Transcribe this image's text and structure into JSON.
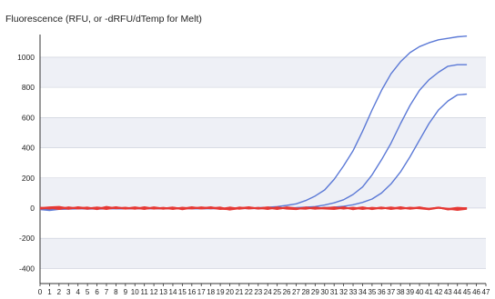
{
  "chart_data": {
    "type": "line",
    "title": "Fluorescence (RFU, or -dRFU/dTemp for Melt)",
    "xlabel": "",
    "ylabel": "",
    "xlim": [
      0,
      47
    ],
    "ylim": [
      -500,
      1150
    ],
    "y_ticks": [
      -400,
      -200,
      0,
      200,
      400,
      600,
      800,
      1000
    ],
    "x_ticks": [
      0,
      1,
      2,
      3,
      4,
      5,
      6,
      7,
      8,
      9,
      10,
      11,
      12,
      13,
      14,
      15,
      16,
      17,
      18,
      19,
      20,
      21,
      22,
      23,
      24,
      25,
      26,
      27,
      28,
      29,
      30,
      31,
      32,
      33,
      34,
      35,
      36,
      37,
      38,
      39,
      40,
      41,
      42,
      43,
      44,
      45,
      46,
      47
    ],
    "grid": "horizontal banded",
    "legend": "none",
    "colors": {
      "amplification": "#5b79d6",
      "baseline": "#e53935",
      "band": "#eef0f6",
      "grid": "#c8ccd8"
    },
    "series": [
      {
        "color": "#5b79d6",
        "x": [
          0,
          1,
          2,
          3,
          4,
          5,
          6,
          7,
          8,
          9,
          10,
          11,
          12,
          13,
          14,
          15,
          16,
          17,
          18,
          19,
          20,
          21,
          22,
          23,
          24,
          25,
          26,
          27,
          28,
          29,
          30,
          31,
          32,
          33,
          34,
          35,
          36,
          37,
          38,
          39,
          40,
          41,
          42,
          43,
          44,
          45
        ],
        "y": [
          -5,
          -8,
          -6,
          -4,
          -5,
          -4,
          -5,
          -3,
          -4,
          -5,
          -3,
          -3,
          -2,
          -4,
          -3,
          -2,
          -4,
          -3,
          -2,
          -3,
          -2,
          -1,
          0,
          2,
          5,
          10,
          18,
          28,
          50,
          80,
          120,
          190,
          280,
          380,
          510,
          650,
          780,
          890,
          970,
          1030,
          1070,
          1095,
          1115,
          1125,
          1135,
          1140
        ]
      },
      {
        "color": "#5b79d6",
        "x": [
          0,
          1,
          2,
          3,
          4,
          5,
          6,
          7,
          8,
          9,
          10,
          11,
          12,
          13,
          14,
          15,
          16,
          17,
          18,
          19,
          20,
          21,
          22,
          23,
          24,
          25,
          26,
          27,
          28,
          29,
          30,
          31,
          32,
          33,
          34,
          35,
          36,
          37,
          38,
          39,
          40,
          41,
          42,
          43,
          44,
          45
        ],
        "y": [
          -8,
          -10,
          -6,
          -5,
          -4,
          -6,
          -5,
          -4,
          -3,
          -5,
          -4,
          -3,
          -4,
          -3,
          -4,
          -3,
          -2,
          -4,
          -3,
          -2,
          -3,
          -2,
          -1,
          -2,
          -1,
          0,
          2,
          3,
          6,
          10,
          20,
          35,
          55,
          90,
          140,
          220,
          320,
          430,
          560,
          680,
          780,
          850,
          900,
          940,
          950,
          950
        ]
      },
      {
        "color": "#5b79d6",
        "x": [
          0,
          1,
          2,
          3,
          4,
          5,
          6,
          7,
          8,
          9,
          10,
          11,
          12,
          13,
          14,
          15,
          16,
          17,
          18,
          19,
          20,
          21,
          22,
          23,
          24,
          25,
          26,
          27,
          28,
          29,
          30,
          31,
          32,
          33,
          34,
          35,
          36,
          37,
          38,
          39,
          40,
          41,
          42,
          43,
          44,
          45
        ],
        "y": [
          -10,
          -15,
          -8,
          -6,
          -5,
          -4,
          -6,
          -5,
          -4,
          -5,
          -3,
          -4,
          -3,
          -5,
          -4,
          -3,
          -4,
          -3,
          -2,
          -3,
          -4,
          -3,
          -2,
          -3,
          -2,
          -2,
          -1,
          -1,
          0,
          1,
          3,
          6,
          12,
          22,
          38,
          60,
          100,
          160,
          240,
          340,
          450,
          560,
          650,
          710,
          750,
          755
        ]
      },
      {
        "color": "#e53935",
        "x": [
          0,
          1,
          2,
          3,
          4,
          5,
          6,
          7,
          8,
          9,
          10,
          11,
          12,
          13,
          14,
          15,
          16,
          17,
          18,
          19,
          20,
          21,
          22,
          23,
          24,
          25,
          26,
          27,
          28,
          29,
          30,
          31,
          32,
          33,
          34,
          35,
          36,
          37,
          38,
          39,
          40,
          41,
          42,
          43,
          44,
          45
        ],
        "y": [
          0,
          5,
          8,
          -2,
          3,
          -5,
          4,
          -3,
          6,
          -4,
          2,
          -6,
          5,
          -3,
          4,
          -8,
          3,
          -2,
          6,
          -5,
          -8,
          4,
          -3,
          2,
          -6,
          5,
          -4,
          -7,
          3,
          -5,
          2,
          -4,
          6,
          -8,
          3,
          -5,
          4,
          -6,
          2,
          -3,
          5,
          -7,
          4,
          -9,
          -3,
          0
        ]
      },
      {
        "color": "#e53935",
        "x": [
          0,
          1,
          2,
          3,
          4,
          5,
          6,
          7,
          8,
          9,
          10,
          11,
          12,
          13,
          14,
          15,
          16,
          17,
          18,
          19,
          20,
          21,
          22,
          23,
          24,
          25,
          26,
          27,
          28,
          29,
          30,
          31,
          32,
          33,
          34,
          35,
          36,
          37,
          38,
          39,
          40,
          41,
          42,
          43,
          44,
          45
        ],
        "y": [
          -4,
          2,
          -6,
          5,
          -3,
          4,
          -7,
          8,
          -2,
          3,
          -5,
          6,
          -4,
          2,
          -6,
          3,
          -3,
          5,
          -2,
          4,
          -10,
          -2,
          6,
          -4,
          3,
          -6,
          5,
          -2,
          -5,
          4,
          -3,
          -6,
          2,
          -4,
          5,
          -7,
          3,
          -4,
          6,
          -5,
          2,
          -4,
          3,
          -6,
          2,
          -2
        ]
      },
      {
        "color": "#e53935",
        "x": [
          0,
          1,
          2,
          3,
          4,
          5,
          6,
          7,
          8,
          9,
          10,
          11,
          12,
          13,
          14,
          15,
          16,
          17,
          18,
          19,
          20,
          21,
          22,
          23,
          24,
          25,
          26,
          27,
          28,
          29,
          30,
          31,
          32,
          33,
          34,
          35,
          36,
          37,
          38,
          39,
          40,
          41,
          42,
          43,
          44,
          45
        ],
        "y": [
          3,
          -3,
          4,
          -5,
          6,
          -2,
          3,
          -6,
          4,
          -3,
          5,
          -4,
          2,
          -5,
          3,
          -4,
          6,
          -3,
          2,
          -6,
          4,
          -5,
          3,
          -2,
          5,
          -4,
          2,
          -6,
          4,
          -3,
          -2,
          5,
          -4,
          3,
          -6,
          2,
          -3,
          4,
          -5,
          3,
          -2,
          -8,
          2,
          -4,
          -12,
          -5
        ]
      }
    ]
  }
}
